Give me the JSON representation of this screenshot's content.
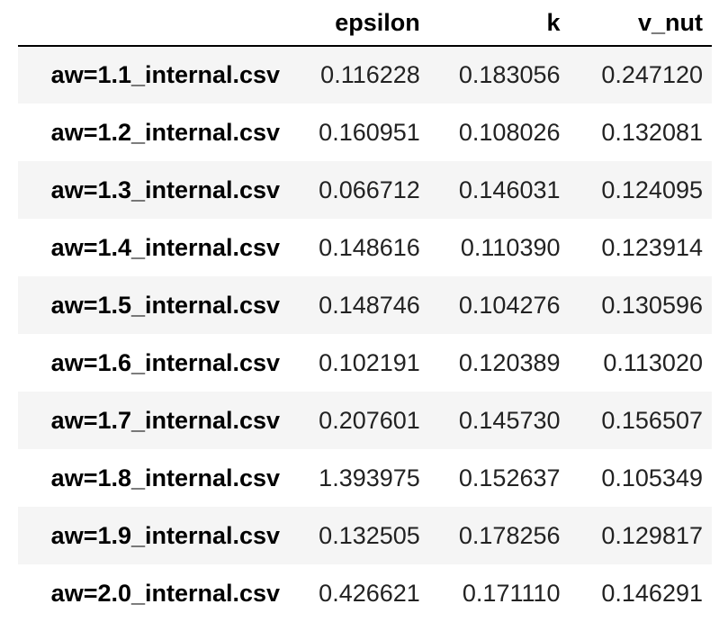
{
  "table": {
    "columns": [
      "epsilon",
      "k",
      "v_nut"
    ],
    "rows": [
      {
        "index": "aw=1.1_internal.csv",
        "epsilon": "0.116228",
        "k": "0.183056",
        "v_nut": "0.247120"
      },
      {
        "index": "aw=1.2_internal.csv",
        "epsilon": "0.160951",
        "k": "0.108026",
        "v_nut": "0.132081"
      },
      {
        "index": "aw=1.3_internal.csv",
        "epsilon": "0.066712",
        "k": "0.146031",
        "v_nut": "0.124095"
      },
      {
        "index": "aw=1.4_internal.csv",
        "epsilon": "0.148616",
        "k": "0.110390",
        "v_nut": "0.123914"
      },
      {
        "index": "aw=1.5_internal.csv",
        "epsilon": "0.148746",
        "k": "0.104276",
        "v_nut": "0.130596"
      },
      {
        "index": "aw=1.6_internal.csv",
        "epsilon": "0.102191",
        "k": "0.120389",
        "v_nut": "0.113020"
      },
      {
        "index": "aw=1.7_internal.csv",
        "epsilon": "0.207601",
        "k": "0.145730",
        "v_nut": "0.156507"
      },
      {
        "index": "aw=1.8_internal.csv",
        "epsilon": "1.393975",
        "k": "0.152637",
        "v_nut": "0.105349"
      },
      {
        "index": "aw=1.9_internal.csv",
        "epsilon": "0.132505",
        "k": "0.178256",
        "v_nut": "0.129817"
      },
      {
        "index": "aw=2.0_internal.csv",
        "epsilon": "0.426621",
        "k": "0.171110",
        "v_nut": "0.146291"
      }
    ]
  },
  "colors": {
    "stripe": "#f5f5f5",
    "background": "#ffffff",
    "header_rule": "#000000"
  }
}
